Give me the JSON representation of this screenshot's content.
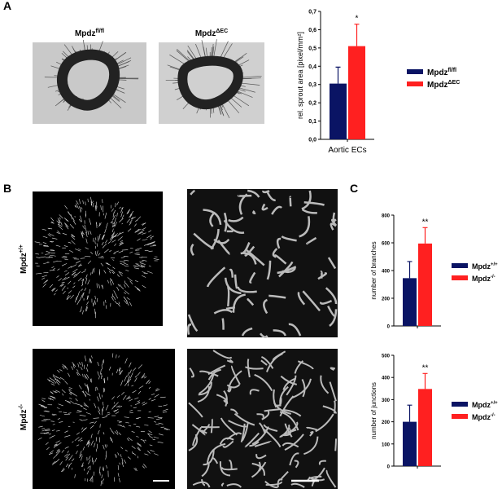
{
  "panels": {
    "a": "A",
    "b": "B",
    "c": "C"
  },
  "images": {
    "a_left": {
      "name": "Mpdz",
      "sup": "fl/fl"
    },
    "a_right": {
      "name": "Mpdz",
      "sup": "ΔEC"
    },
    "b_top": {
      "name": "Mpdz",
      "sup": "+/+"
    },
    "b_bottom": {
      "name": "Mpdz",
      "sup": "-/-"
    }
  },
  "chart_data": [
    {
      "type": "bar",
      "ylabel": "rel. sprout area [pixel/mm²]",
      "categories": [
        "Aortic ECs"
      ],
      "annotation": "*",
      "ylim": [
        0,
        0.7
      ],
      "yticks": [
        {
          "value": 0,
          "label": "0,0"
        },
        {
          "value": 0.1,
          "label": "0,1"
        },
        {
          "value": 0.2,
          "label": "0,2"
        },
        {
          "value": 0.3,
          "label": "0,3"
        },
        {
          "value": 0.4,
          "label": "0,4"
        },
        {
          "value": 0.5,
          "label": "0,5"
        },
        {
          "value": 0.6,
          "label": "0,6"
        },
        {
          "value": 0.7,
          "label": "0,7"
        }
      ],
      "legend": "right",
      "series": [
        {
          "name": "Mpdz",
          "sup": "fl/fl",
          "color": "#0a1464",
          "values": [
            0.305
          ],
          "errors": [
            0.09
          ]
        },
        {
          "name": "Mpdz",
          "sup": "ΔEC",
          "color": "#ff2020",
          "values": [
            0.51
          ],
          "errors": [
            0.12
          ]
        }
      ]
    },
    {
      "type": "bar",
      "ylabel": "number of branches",
      "categories": [
        null
      ],
      "annotation": "**",
      "ylim": [
        0,
        800
      ],
      "yticks": [
        0,
        200,
        400,
        600,
        800
      ],
      "legend": "right",
      "series": [
        {
          "name": "Mpdz",
          "sup": "+/+",
          "color": "#0a1464",
          "values": [
            345
          ],
          "errors": [
            120
          ]
        },
        {
          "name": "Mpdz",
          "sup": "-/-",
          "color": "#ff2020",
          "values": [
            595
          ],
          "errors": [
            115
          ]
        }
      ]
    },
    {
      "type": "bar",
      "ylabel": "number of junctions",
      "categories": [
        null
      ],
      "annotation": "**",
      "ylim": [
        0,
        500
      ],
      "yticks": [
        0,
        100,
        200,
        300,
        400,
        500
      ],
      "legend": "right",
      "series": [
        {
          "name": "Mpdz",
          "sup": "+/+",
          "color": "#0a1464",
          "values": [
            200
          ],
          "errors": [
            75
          ]
        },
        {
          "name": "Mpdz",
          "sup": "-/-",
          "color": "#ff2020",
          "values": [
            348
          ],
          "errors": [
            70
          ]
        }
      ]
    }
  ]
}
